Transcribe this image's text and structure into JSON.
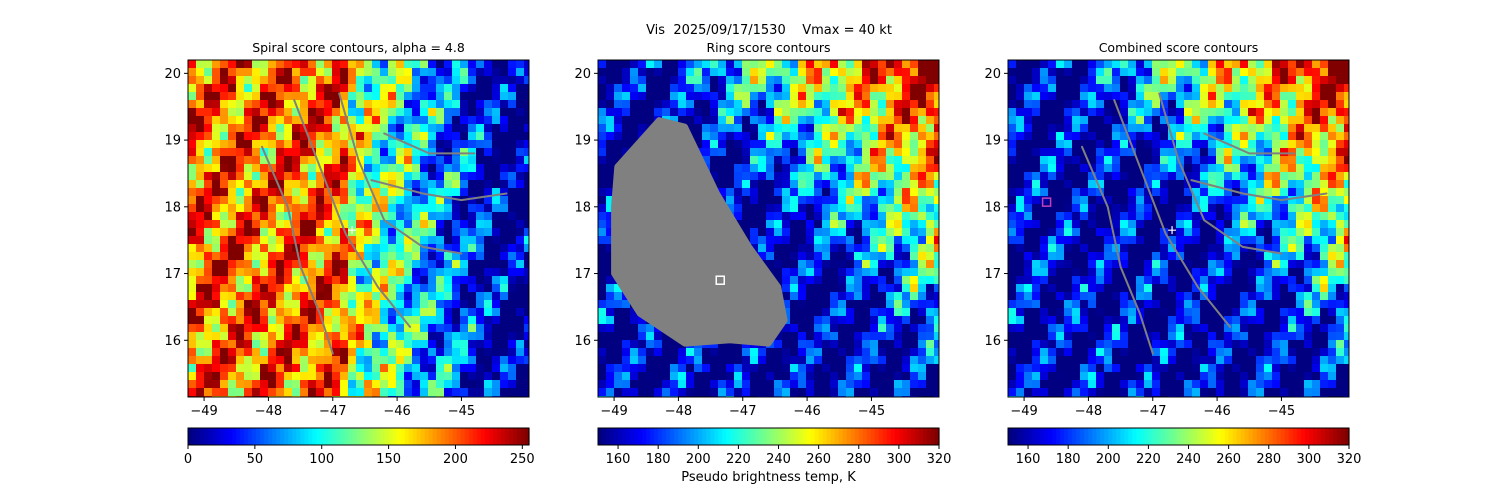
{
  "suptitle": "Vis  2025/09/17/1530    Vmax = 40 kt",
  "colors": {
    "contour": "#808080",
    "mask": "#808080",
    "center_marker": "#ffffff",
    "box_marker_ring": "#ffffff",
    "box_marker_combined": "#c040c0"
  },
  "chart_data": [
    {
      "type": "heatmap",
      "title": "Spiral score contours, alpha =  4.8",
      "xlabel": "",
      "ylabel": "",
      "xlim": [
        -49.25,
        -43.95
      ],
      "ylim": [
        15.15,
        20.2
      ],
      "xticks": [
        -49,
        -48,
        -47,
        -46,
        -45
      ],
      "yticks": [
        16,
        17,
        18,
        19,
        20
      ],
      "colormap": "jet_r",
      "colorbar": {
        "range": [
          0,
          255
        ],
        "ticks": [
          0,
          50,
          100,
          150,
          200,
          250
        ],
        "label": ""
      },
      "center_marker": {
        "x": -46.7,
        "y": 17.65
      },
      "grid": false
    },
    {
      "type": "heatmap",
      "title": "Ring score contours",
      "xlabel": "",
      "ylabel": "",
      "xlim": [
        -49.25,
        -43.95
      ],
      "ylim": [
        15.15,
        20.2
      ],
      "xticks": [
        -49,
        -48,
        -47,
        -46,
        -45
      ],
      "yticks": [
        16,
        17,
        18,
        19,
        20
      ],
      "colormap": "jet_r",
      "colorbar": {
        "range": [
          150,
          320
        ],
        "ticks": [
          160,
          180,
          200,
          220,
          240,
          260,
          280,
          300,
          320
        ],
        "label": "Pseudo brightness temp, K"
      },
      "box_marker": {
        "x": -47.35,
        "y": 16.9
      },
      "grid": false
    },
    {
      "type": "heatmap",
      "title": "Combined score contours",
      "xlabel": "",
      "ylabel": "",
      "xlim": [
        -49.25,
        -43.95
      ],
      "ylim": [
        15.15,
        20.2
      ],
      "xticks": [
        -49,
        -48,
        -47,
        -46,
        -45
      ],
      "yticks": [
        16,
        17,
        18,
        19,
        20
      ],
      "colormap": "jet_r",
      "colorbar": {
        "range": [
          150,
          320
        ],
        "ticks": [
          160,
          180,
          200,
          220,
          240,
          260,
          280,
          300,
          320
        ],
        "label": ""
      },
      "center_marker": {
        "x": -46.7,
        "y": 17.65
      },
      "box_marker": {
        "x": -48.65,
        "y": 18.07
      },
      "grid": false
    }
  ]
}
